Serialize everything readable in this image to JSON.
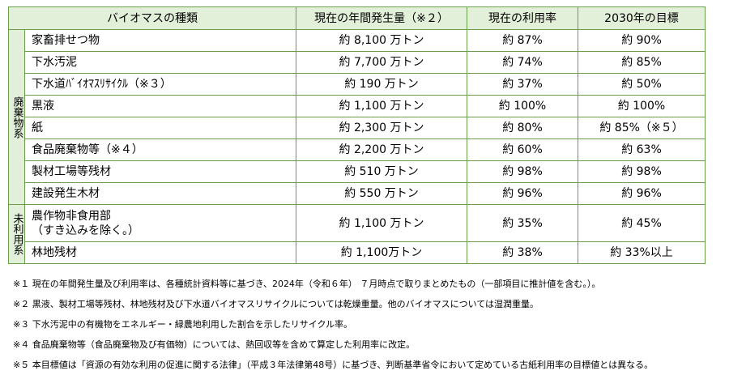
{
  "table": {
    "header": [
      "バイオマスの種類",
      "現在の年間発生量（※２）",
      "現在の利用率",
      "2030年の目標"
    ],
    "groups": [
      {
        "label": "廃棄物系",
        "rows": [
          [
            "家畜排せつ物",
            "約 8,100 万トン",
            "約 87%",
            "約 90%"
          ],
          [
            "下水汚泥",
            "約 7,700 万トン",
            "約 74%",
            "約 85%"
          ],
          [
            "下水道ﾊﾞｲｵﾏｽﾘｻｲｸﾙ（※３）",
            "約 190 万トン",
            "約 37%",
            "約 50%"
          ],
          [
            "黒液",
            "約 1,100 万トン",
            "約 100%",
            "約 100%"
          ],
          [
            "紙",
            "約 2,300 万トン",
            "約 80%",
            "約 85%（※５）"
          ],
          [
            "食品廃棄物等（※４）",
            "約 2,200 万トン",
            "約 60%",
            "約 63%"
          ],
          [
            "製材工場等残材",
            "約 510 万トン",
            "約 98%",
            "約 98%"
          ],
          [
            "建設発生木材",
            "約 550 万トン",
            "約 96%",
            "約 96%"
          ]
        ]
      },
      {
        "label": "未利用系",
        "rows": [
          [
            "農作物非食用部\n（すき込みを除く。）",
            "約 1,100 万トン",
            "約 35%",
            "約 45%"
          ],
          [
            "林地残材",
            "約 1,100万トン",
            "約 38%",
            "約 33%以上"
          ]
        ]
      }
    ]
  },
  "notes": [
    "※１ 現在の年間発生量及び利用率は、各種統計資料等に基づき、2024年（令和６年） ７月時点で取りまとめたもの（一部項目に推計値を含む。）。",
    "※２ 黒液、製材工場等残材、林地残材及び下水道バイオマスリサイクルについては乾燥重量。他のバイオマスについては湿潤重量。",
    "※３ 下水汚泥中の有機物をエネルギー・緑農地利用した割合を示したリサイクル率。",
    "※４ 食品廃棄物等（食品廃棄物及び有価物）については、熱回収等を含めて算定した利用率に改定。",
    "※５ 本目標値は「資源の有効な利用の促進に関する法律」（平成３年法律第48号）に基づき、判断基準省令において定めている古紙利用率の目標値とは異なる。"
  ]
}
